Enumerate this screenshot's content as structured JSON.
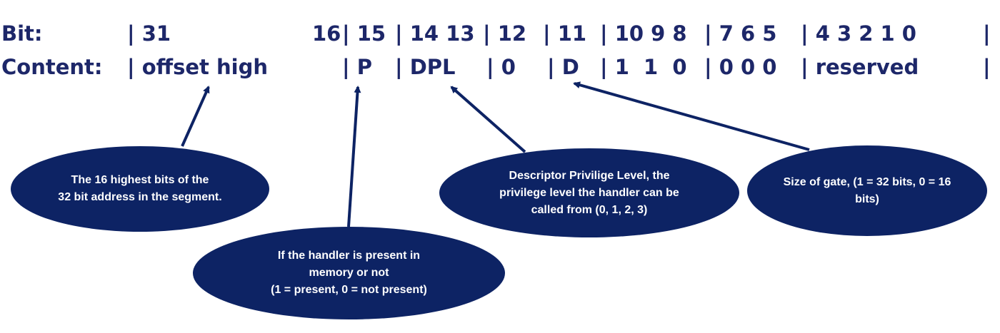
{
  "bit_row": {
    "label": "Bit:",
    "cells": [
      {
        "text": "| 31"
      },
      {
        "text": "16"
      },
      {
        "text": "| 15"
      },
      {
        "text": "| 14 13"
      },
      {
        "text": "| 12"
      },
      {
        "text": "| 11"
      },
      {
        "text": "| 10 9 8"
      },
      {
        "text": "| 7 6 5"
      },
      {
        "text": "| 4 3 2 1 0"
      },
      {
        "text": "|"
      }
    ]
  },
  "content_row": {
    "label": "Content:",
    "cells": [
      {
        "text": "| offset high"
      },
      {
        "text": "| P"
      },
      {
        "text": "| DPL"
      },
      {
        "text": "| 0"
      },
      {
        "text": "| D"
      },
      {
        "text": "| 1  1  0"
      },
      {
        "text": "| 0 0 0"
      },
      {
        "text": "| reserved"
      },
      {
        "text": "|"
      }
    ]
  },
  "callouts": {
    "offset_high": {
      "lines": [
        "The 16 highest bits of the",
        "32 bit address in the segment."
      ]
    },
    "present": {
      "lines": [
        "If the handler is present in",
        "memory or not",
        "(1 = present, 0 = not present)"
      ]
    },
    "dpl": {
      "lines": [
        "Descriptor Privilige Level, the",
        "privilege level the handler can be",
        "called from (0, 1, 2, 3)"
      ]
    },
    "gate_size": {
      "lines": [
        "Size of gate, (1 = 32 bits, 0 = 16",
        "bits)"
      ]
    }
  },
  "colors": {
    "text": "#1d2769",
    "bubble": "#0d2364",
    "bubble_text": "#ffffff"
  }
}
